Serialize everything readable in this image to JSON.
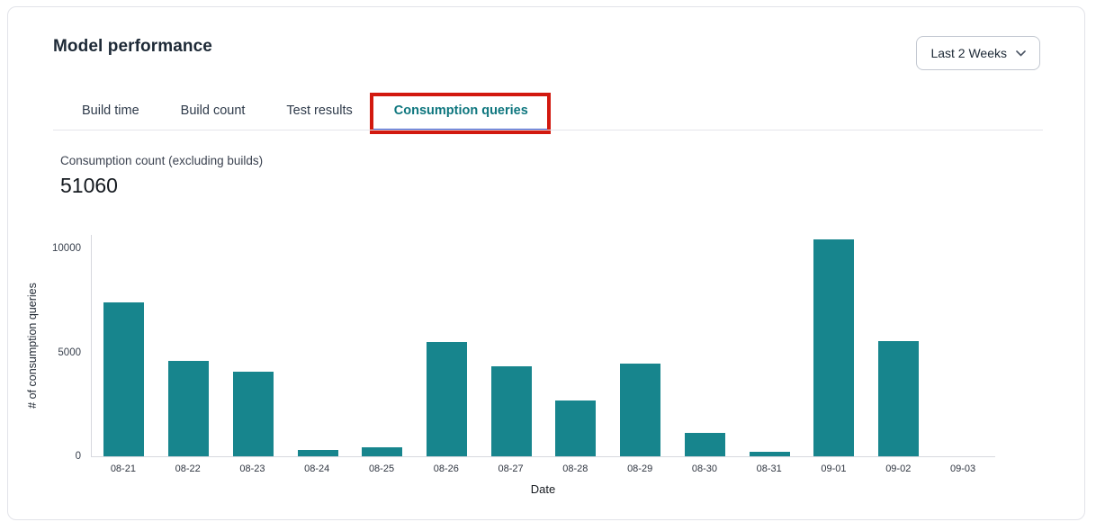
{
  "header": {
    "title": "Model performance",
    "range_selector": {
      "value": "Last 2 Weeks"
    }
  },
  "tabs": [
    {
      "label": "Build time",
      "active": false
    },
    {
      "label": "Build count",
      "active": false
    },
    {
      "label": "Test results",
      "active": false
    },
    {
      "label": "Consumption queries",
      "active": true
    }
  ],
  "metric": {
    "label": "Consumption count (excluding builds)",
    "value": "51060"
  },
  "chart_data": {
    "type": "bar",
    "categories": [
      "08-21",
      "08-22",
      "08-23",
      "08-24",
      "08-25",
      "08-26",
      "08-27",
      "08-28",
      "08-29",
      "08-30",
      "08-31",
      "09-01",
      "09-02",
      "09-03"
    ],
    "values": [
      7400,
      4600,
      4050,
      300,
      420,
      5480,
      4330,
      2700,
      4450,
      1130,
      200,
      10450,
      5550,
      0
    ],
    "title": "",
    "xlabel": "Date",
    "ylabel": "# of consumption queries",
    "yticks": [
      0,
      5000,
      10000
    ],
    "ylim": [
      0,
      10650
    ],
    "grid": false,
    "legend": "none",
    "bar_color": "#17858d"
  },
  "annotation": {
    "type": "highlight-box",
    "target": "Consumption queries tab",
    "color": "#d2190f"
  },
  "colors": {
    "bar_teal": "#17858d",
    "active_tab_text": "#0e767e",
    "active_tab_underline": "#3353cd",
    "annotation_red": "#d2190f",
    "text_dark": "#1d2936",
    "axis_line": "#d7d8de",
    "card_border": "#e2e3e9"
  }
}
